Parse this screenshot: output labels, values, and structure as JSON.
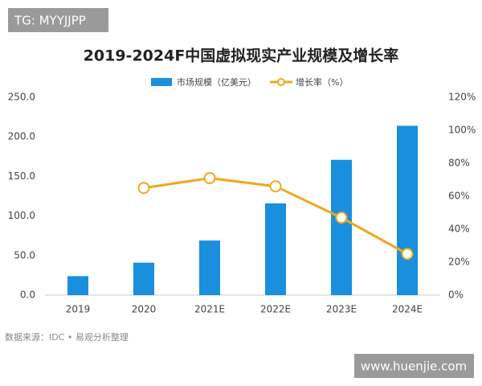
{
  "chart_data": {
    "type": "bar_line",
    "title": "2019-2024F中国虚拟现实产业规模及增长率",
    "badge": "TG: MYYJJPP",
    "source": "数据来源：IDC • 易观分析整理",
    "site": "www.huenjie.com",
    "categories": [
      "2019",
      "2020",
      "2021E",
      "2022E",
      "2023E",
      "2024E"
    ],
    "series": [
      {
        "name": "市场规模（亿美元）",
        "color": "#1a8fdd",
        "kind": "bar",
        "values": [
          24,
          41,
          69,
          116,
          171,
          214
        ]
      },
      {
        "name": "增长率（%）",
        "color": "#f0a81c",
        "kind": "line",
        "axis": "y2",
        "values": [
          null,
          65,
          71,
          66,
          47,
          25
        ]
      }
    ],
    "ylim": [
      0,
      250
    ],
    "yticks": [
      {
        "value": 0,
        "label": "0.0"
      },
      {
        "value": 50,
        "label": "50.0"
      },
      {
        "value": 100,
        "label": "100.0"
      },
      {
        "value": 150,
        "label": "150.0"
      },
      {
        "value": 200,
        "label": "200.0"
      },
      {
        "value": 250,
        "label": "250.0"
      }
    ],
    "y2lim": [
      0,
      120
    ],
    "y2ticks": [
      {
        "value": 0,
        "label": "0%"
      },
      {
        "value": 20,
        "label": "20%"
      },
      {
        "value": 40,
        "label": "40%"
      },
      {
        "value": 60,
        "label": "60%"
      },
      {
        "value": 80,
        "label": "80%"
      },
      {
        "value": 100,
        "label": "100%"
      },
      {
        "value": 120,
        "label": "120%"
      }
    ]
  }
}
